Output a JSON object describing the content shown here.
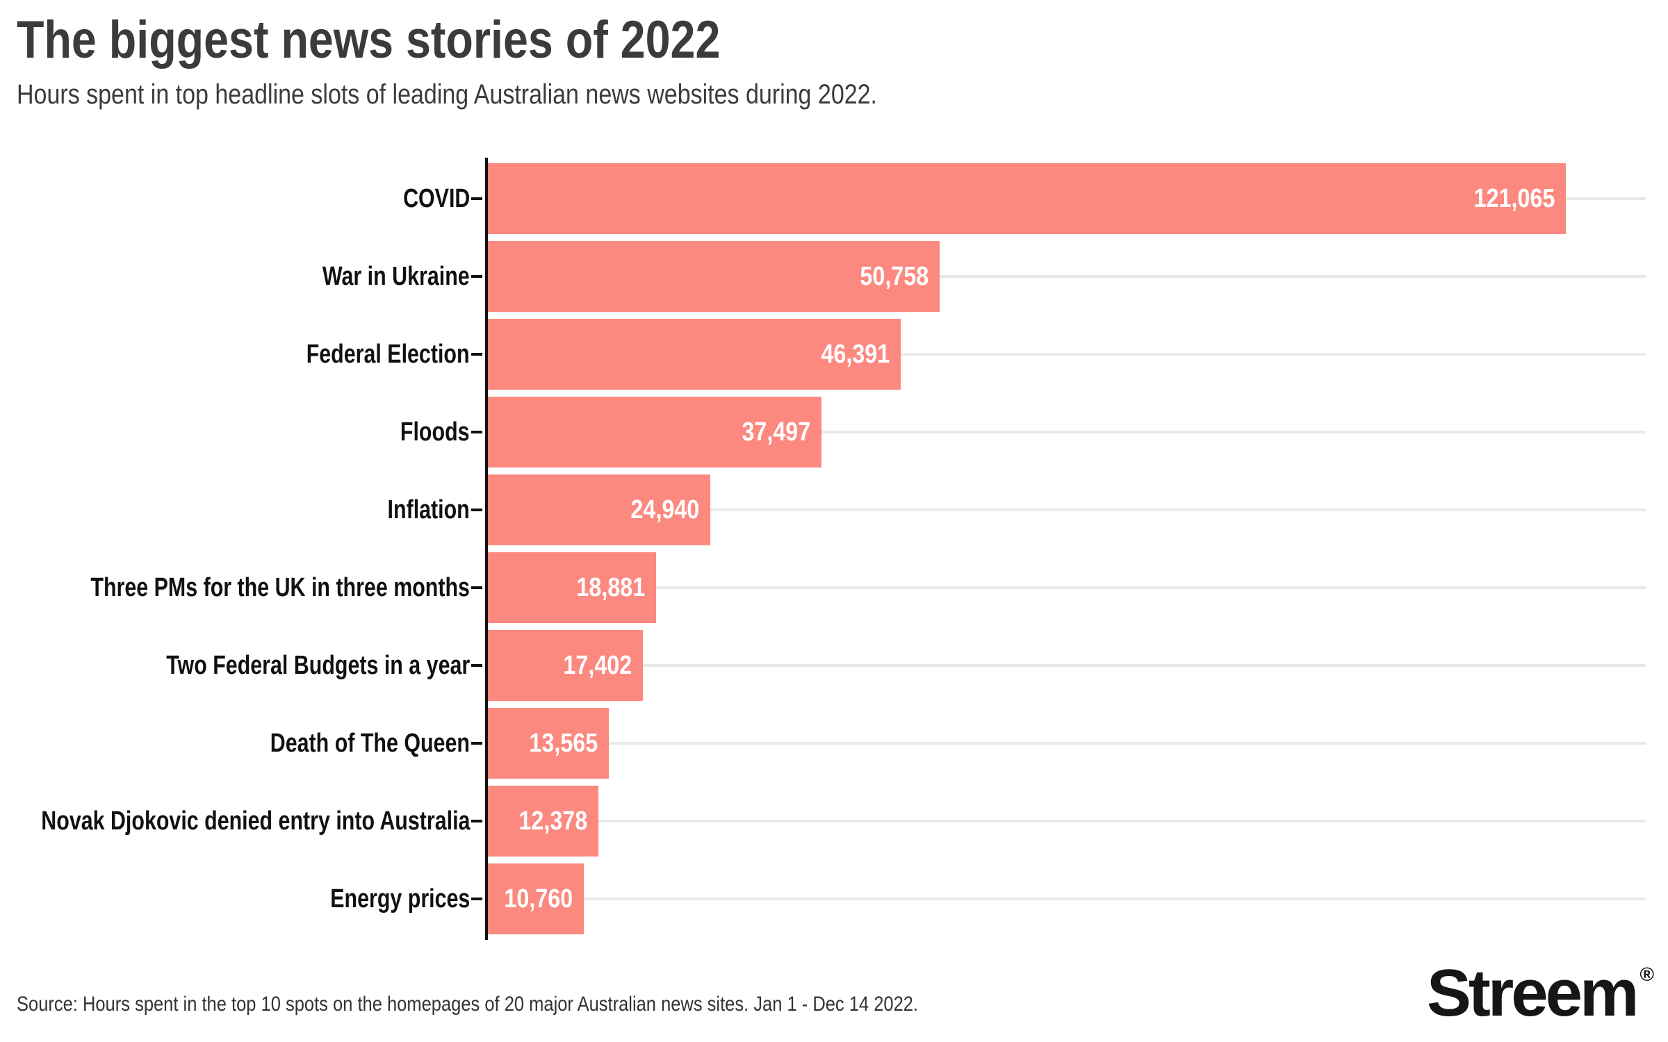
{
  "header": {
    "title": "The biggest news stories of 2022",
    "subtitle": "Hours spent in top headline slots of leading Australian news websites during 2022."
  },
  "chart_data": {
    "type": "bar",
    "orientation": "horizontal",
    "title": "The biggest news stories of 2022",
    "subtitle": "Hours spent in top headline slots of leading Australian news websites during 2022.",
    "xlabel": "",
    "ylabel": "",
    "xlim": [
      0,
      125000
    ],
    "grid": "per-category horizontal gridlines",
    "legend": "none",
    "categories": [
      "COVID",
      "War in Ukraine",
      "Federal Election",
      "Floods",
      "Inflation",
      "Three PMs for the UK in three months",
      "Two Federal Budgets in a year",
      "Death of The Queen",
      "Novak Djokovic denied entry into Australia",
      "Energy prices"
    ],
    "values": [
      121065,
      50758,
      46391,
      37497,
      24940,
      18881,
      17402,
      13565,
      12378,
      10760
    ],
    "value_labels": [
      "121,065",
      "50,758",
      "46,391",
      "37,497",
      "24,940",
      "18,881",
      "17,402",
      "13,565",
      "12,378",
      "10,760"
    ],
    "colors": {
      "bar": "#FC8980",
      "value_label": "#FFFFFF",
      "gridline": "#E9E9E9",
      "axis": "#111111",
      "category_label": "#111111",
      "title": "#3B3B3B",
      "subtitle": "#3B3B3B"
    }
  },
  "footer": {
    "source": "Source: Hours spent in the top 10 spots on the homepages of 20 major Australian news sites. Jan 1 - Dec 14 2022.",
    "logo": {
      "text": "Streem",
      "registered_mark": "®"
    }
  }
}
